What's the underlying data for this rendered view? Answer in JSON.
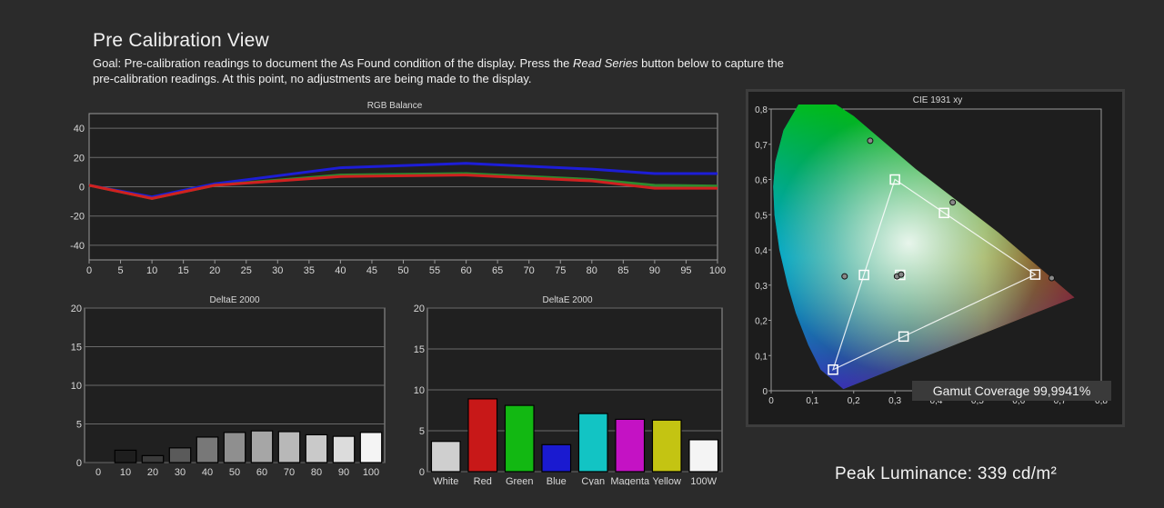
{
  "header": {
    "title": "Pre Calibration View",
    "goal_prefix": "Goal: Pre-calibration readings to document the As Found condition of the display. Press the ",
    "goal_em": "Read Series",
    "goal_suffix": " button below to capture the pre-calibration readings. At this point, no adjustments are being made to the display."
  },
  "gamut_label": "Gamut Coverage 99,9941%",
  "peak_label": "Peak Luminance: 339 cd/m²",
  "chart_data": [
    {
      "type": "line",
      "title": "RGB Balance",
      "x": [
        0,
        10,
        20,
        40,
        60,
        80,
        90,
        100
      ],
      "xlim": [
        0,
        100
      ],
      "ylim": [
        -50,
        50
      ],
      "xticks": [
        "0",
        "5",
        "10",
        "15",
        "20",
        "25",
        "30",
        "35",
        "40",
        "45",
        "50",
        "55",
        "60",
        "65",
        "70",
        "75",
        "80",
        "85",
        "90",
        "95",
        "100"
      ],
      "yticks": [
        "40",
        "20",
        "0",
        "-20",
        "-40"
      ],
      "series": [
        {
          "color": "#1d1dd6",
          "values": [
            1,
            -7,
            2,
            13,
            16,
            12,
            9,
            9
          ]
        },
        {
          "color": "#2e8b2e",
          "values": [
            1,
            -8,
            1,
            8,
            9,
            5,
            1,
            0.5
          ]
        },
        {
          "color": "#d02020",
          "values": [
            1,
            -8,
            1,
            7,
            8,
            4,
            -1,
            -1
          ]
        }
      ]
    },
    {
      "type": "bar",
      "title": "DeltaE 2000",
      "categories": [
        "0",
        "10",
        "20",
        "30",
        "40",
        "50",
        "60",
        "70",
        "80",
        "90",
        "100"
      ],
      "values": [
        0,
        1.6,
        0.9,
        1.9,
        3.3,
        3.9,
        4.1,
        4.0,
        3.6,
        3.4,
        3.9
      ],
      "ylim": [
        0,
        20
      ],
      "yticks": [
        "20",
        "15",
        "10",
        "5",
        "0"
      ],
      "colors": [
        "#000000",
        "#1e1e1e",
        "#3b3b3b",
        "#5a5a5a",
        "#787878",
        "#8f8f8f",
        "#a6a6a6",
        "#b8b8b8",
        "#c9c9c9",
        "#dcdcdc",
        "#f4f4f4"
      ]
    },
    {
      "type": "bar",
      "title": "DeltaE 2000",
      "categories": [
        "White",
        "Red",
        "Green",
        "Blue",
        "Cyan",
        "Magenta",
        "Yellow",
        "100W"
      ],
      "values": [
        3.7,
        8.9,
        8.1,
        3.3,
        7.1,
        6.4,
        6.3,
        3.9
      ],
      "ylim": [
        0,
        20
      ],
      "yticks": [
        "20",
        "15",
        "10",
        "5",
        "0"
      ],
      "colors": [
        "#cfcfcf",
        "#c81818",
        "#12b812",
        "#1a1ad0",
        "#12c4c4",
        "#c412c4",
        "#c4c412",
        "#f4f4f4"
      ]
    },
    {
      "type": "scatter",
      "title": "CIE 1931 xy",
      "xlim": [
        0,
        0.8
      ],
      "ylim": [
        0,
        0.8
      ],
      "xticks": [
        "0",
        "0,1",
        "0,2",
        "0,3",
        "0,4",
        "0,5",
        "0,6",
        "0,7",
        "0,8"
      ],
      "yticks": [
        "0,8",
        "0,7",
        "0,6",
        "0,5",
        "0,4",
        "0,3",
        "0,2",
        "0,1",
        "0"
      ],
      "targets": [
        [
          0.64,
          0.33
        ],
        [
          0.3,
          0.6
        ],
        [
          0.15,
          0.06
        ],
        [
          0.225,
          0.329
        ],
        [
          0.321,
          0.154
        ],
        [
          0.419,
          0.505
        ],
        [
          0.3127,
          0.329
        ]
      ],
      "measured": [
        [
          0.68,
          0.32
        ],
        [
          0.24,
          0.71
        ],
        [
          0.178,
          0.325
        ],
        [
          0.44,
          0.535
        ],
        [
          0.305,
          0.325
        ],
        [
          0.315,
          0.33
        ]
      ]
    }
  ]
}
